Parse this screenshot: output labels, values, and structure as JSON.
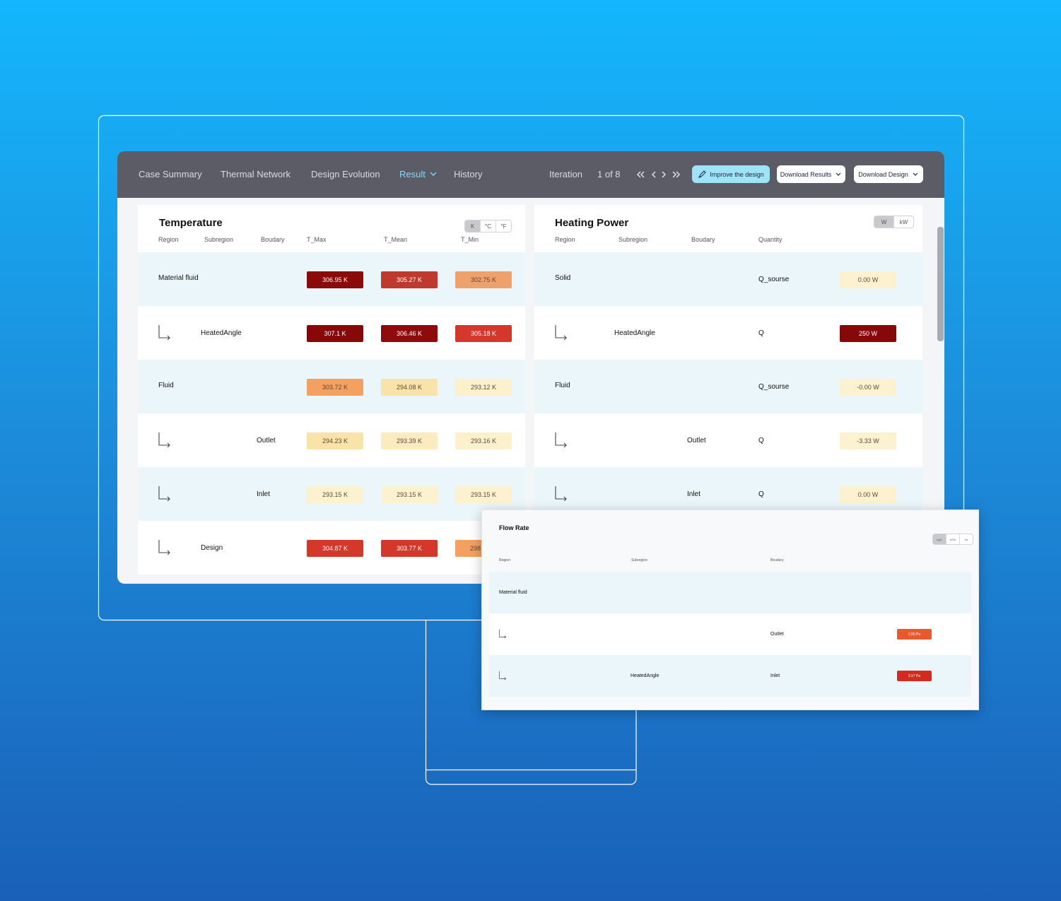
{
  "nav": {
    "tabs": [
      "Case Summary",
      "Thermal Network",
      "Design Evolution",
      "Result",
      "History"
    ],
    "active_tab": 3,
    "iteration_label": "Iteration",
    "iteration": "1 of 8",
    "buttons": [
      "Improve the design",
      "Download Results",
      "Download Design"
    ]
  },
  "temperature": {
    "title": "Temperature",
    "units": [
      "K",
      "°C",
      "°F"
    ],
    "headers": [
      "Region",
      "Subregion",
      "Boudary",
      "T_Max",
      "T_Mean",
      "T_Min"
    ],
    "rows": [
      {
        "region": "Material fluid",
        "subregion": null,
        "boundary": null,
        "values": [
          "306.95 K",
          "305.27 K",
          "302.75 K"
        ],
        "colors": [
          "#8b0a0a",
          "#c0392f",
          "#efa16c"
        ]
      },
      {
        "region": null,
        "subregion": "HeatedAngle",
        "boundary": null,
        "values": [
          "307.1 K",
          "306.46 K",
          "305.18 K"
        ],
        "colors": [
          "#870808",
          "#8f0a0a",
          "#d4382a"
        ]
      },
      {
        "region": "Fluid",
        "subregion": null,
        "boundary": null,
        "values": [
          "303.72 K",
          "294.08 K",
          "293.12 K"
        ],
        "colors": [
          "#f3a060",
          "#fae3a9",
          "#fdf1cc"
        ]
      },
      {
        "region": null,
        "subregion": null,
        "boundary": "Outlet",
        "values": [
          "294.23 K",
          "293.39 K",
          "293.16 K"
        ],
        "colors": [
          "#fae3a9",
          "#fcebbf",
          "#fdf1cc"
        ]
      },
      {
        "region": null,
        "subregion": null,
        "boundary": "Inlet",
        "values": [
          "293.15 K",
          "293.15 K",
          "293.15 K"
        ],
        "colors": [
          "#fdf2cf",
          "#fdf2cf",
          "#fdf2cf"
        ]
      },
      {
        "region": null,
        "subregion": "Design",
        "boundary": null,
        "values": [
          "304.87 K",
          "303.77 K",
          "298"
        ],
        "colors": [
          "#d4382a",
          "#d4382a",
          "#f3a060"
        ]
      }
    ]
  },
  "heating_power": {
    "title": "Heating Power",
    "units": [
      "W",
      "kW"
    ],
    "headers": [
      "Region",
      "Subregion",
      "Boudary",
      "Quantity"
    ],
    "rows": [
      {
        "region": "Solid",
        "subregion": null,
        "boundary": null,
        "quantity": "Q_sourse",
        "value": "0.00 W",
        "color": "#fdf2cf"
      },
      {
        "region": null,
        "subregion": "HeatedAngle",
        "boundary": null,
        "quantity": "Q",
        "value": "250 W",
        "color": "#870808"
      },
      {
        "region": "Fluid",
        "subregion": null,
        "boundary": null,
        "quantity": "Q_sourse",
        "value": "-0.00 W",
        "color": "#fdf2cf"
      },
      {
        "region": null,
        "subregion": null,
        "boundary": "Outlet",
        "quantity": "Q",
        "value": "-3.33 W",
        "color": "#fdf2cf"
      },
      {
        "region": null,
        "subregion": null,
        "boundary": "Inlet",
        "quantity": "Q",
        "value": "0.00 W",
        "color": "#fdf2cf"
      }
    ]
  },
  "flow_rate": {
    "title": "Flow Rate",
    "units": [
      "kg/s",
      "m³/s",
      "l/s"
    ],
    "headers": [
      "Region",
      "Subregion",
      "Boudary"
    ],
    "rows": [
      {
        "region": "Material fluid",
        "subregion": null,
        "boundary": null,
        "value": null,
        "color": null
      },
      {
        "region": null,
        "subregion": null,
        "boundary": "Outlet",
        "value": "0.00 Pa",
        "color": "#e85a2c"
      },
      {
        "region": null,
        "subregion": "HeatedAngle",
        "boundary": "Inlet",
        "value": "2.97 Pa",
        "color": "#d42a20"
      }
    ]
  }
}
